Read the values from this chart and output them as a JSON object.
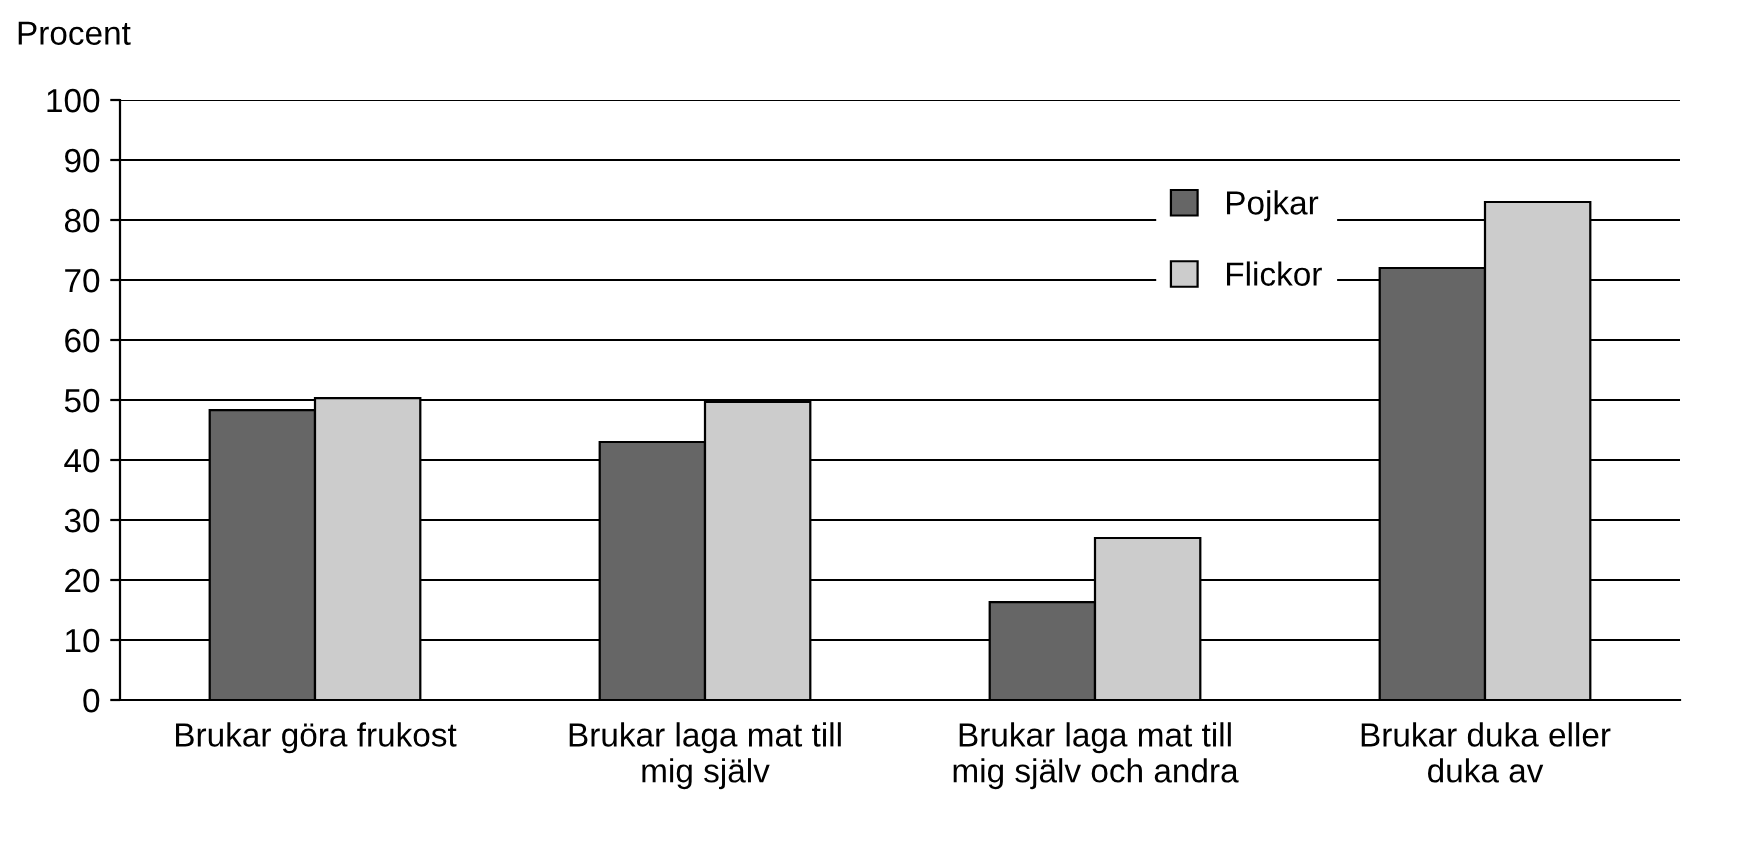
{
  "chart_data": {
    "type": "bar",
    "ylabel": "Procent",
    "categories": [
      "Brukar göra frukost",
      "Brukar laga mat till\nmig själv",
      "Brukar laga mat till\nmig själv och andra",
      "Brukar duka eller\nduka av"
    ],
    "series": [
      {
        "name": "Pojkar",
        "color": "#666666",
        "values": [
          48.3,
          43,
          16.3,
          72
        ]
      },
      {
        "name": "Flickor",
        "color": "#cccccc",
        "values": [
          50.3,
          49.7,
          27,
          83
        ]
      }
    ],
    "ylim": [
      0,
      100
    ],
    "yticks": [
      0,
      10,
      20,
      30,
      40,
      50,
      60,
      70,
      80,
      90,
      100
    ],
    "grid": "y",
    "legend": "top right"
  }
}
